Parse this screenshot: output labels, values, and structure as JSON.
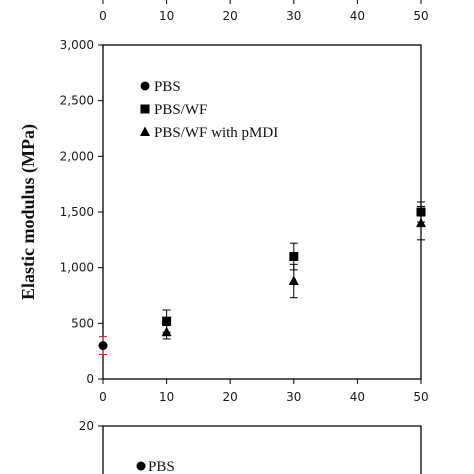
{
  "chart_data": [
    {
      "type": "scatter",
      "top_axis_ticks": [
        "0",
        "10",
        "20",
        "30",
        "40",
        "50"
      ],
      "x_ticks": [
        "0",
        "10",
        "20",
        "30",
        "40",
        "50"
      ],
      "y_ticks": [
        "0",
        "500",
        "1,000",
        "1,500",
        "2,000",
        "2,500",
        "3,000"
      ],
      "ylabel": "Elastic modulus (MPa)",
      "xlim": [
        0,
        50
      ],
      "ylim": [
        0,
        3000
      ],
      "legend_position": "top-left",
      "series": [
        {
          "name": "PBS",
          "marker": "circle",
          "x": [
            0
          ],
          "y": [
            300
          ],
          "err": [
            80
          ],
          "err_color": "#cc2222"
        },
        {
          "name": "PBS/WF",
          "marker": "square",
          "x": [
            10,
            30,
            50
          ],
          "y": [
            520,
            1100,
            1500
          ],
          "err": [
            100,
            120,
            90
          ]
        },
        {
          "name": "PBS/WF with pMDI",
          "marker": "triangle",
          "x": [
            10,
            30,
            50
          ],
          "y": [
            420,
            880,
            1400
          ],
          "err": [
            60,
            150,
            150
          ]
        }
      ]
    },
    {
      "type": "scatter",
      "y_ticks": [
        "20"
      ],
      "legend_position": "top-left",
      "series": [
        {
          "name": "PBS",
          "marker": "circle"
        }
      ]
    }
  ]
}
